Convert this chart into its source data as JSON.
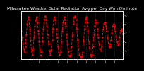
{
  "title": "Milwaukee Weather Solar Radiation Avg per Day W/m2/minute",
  "title_fontsize": 4.2,
  "line_color": "red",
  "line_style": "--",
  "line_width": 0.7,
  "marker": ".",
  "marker_size": 1.5,
  "bg_color": "#000000",
  "plot_bg_color": "#000000",
  "grid_color": "#888888",
  "text_color": "#ffffff",
  "x_values": [
    1,
    2,
    3,
    4,
    5,
    6,
    7,
    8,
    9,
    10,
    11,
    12,
    13,
    14,
    15,
    16,
    17,
    18,
    19,
    20,
    21,
    22,
    23,
    24,
    25,
    26,
    27,
    28,
    29,
    30,
    31,
    32,
    33,
    34,
    35,
    36,
    37,
    38,
    39,
    40,
    41,
    42,
    43,
    44,
    45,
    46,
    47,
    48,
    49,
    50,
    51,
    52,
    53,
    54,
    55,
    56,
    57,
    58,
    59,
    60,
    61,
    62,
    63,
    64,
    65,
    66,
    67,
    68,
    69,
    70,
    71,
    72,
    73,
    74,
    75,
    76,
    77,
    78,
    79,
    80,
    81,
    82,
    83,
    84,
    85,
    86,
    87,
    88,
    89,
    90,
    91,
    92,
    93,
    94,
    95,
    96,
    97,
    98,
    99,
    100,
    101,
    102,
    103,
    104,
    105,
    106,
    107,
    108,
    109,
    110,
    111,
    112,
    113,
    114,
    115,
    116,
    117,
    118,
    119,
    120
  ],
  "y_values": [
    3.2,
    2.5,
    1.8,
    1.2,
    0.8,
    1.5,
    2.8,
    4.0,
    4.8,
    4.5,
    3.5,
    2.2,
    1.0,
    0.5,
    1.2,
    2.5,
    3.8,
    4.5,
    4.8,
    4.2,
    3.2,
    2.0,
    1.0,
    0.4,
    0.8,
    2.0,
    3.5,
    4.5,
    4.9,
    4.5,
    3.8,
    2.8,
    1.8,
    1.0,
    0.5,
    1.0,
    2.2,
    3.5,
    4.5,
    4.8,
    4.5,
    3.5,
    2.5,
    1.5,
    0.8,
    0.5,
    0.8,
    2.0,
    3.2,
    4.2,
    4.8,
    4.5,
    3.8,
    2.8,
    1.8,
    0.9,
    0.4,
    0.3,
    0.5,
    1.5,
    2.8,
    4.0,
    4.8,
    4.9,
    4.5,
    3.5,
    2.2,
    1.2,
    0.5,
    0.3,
    0.2,
    0.3,
    0.8,
    2.0,
    3.5,
    4.5,
    4.8,
    4.2,
    3.2,
    2.0,
    1.2,
    0.5,
    0.3,
    0.5,
    1.5,
    2.8,
    3.8,
    4.5,
    4.2,
    3.5,
    2.5,
    1.8,
    1.2,
    1.0,
    1.5,
    2.5,
    3.5,
    4.0,
    4.2,
    3.8,
    3.2,
    2.5,
    1.8,
    1.4,
    1.5,
    2.2,
    3.0,
    3.8,
    4.0,
    3.8,
    3.2,
    2.6,
    2.0,
    1.6,
    1.8,
    2.5,
    3.2,
    3.5,
    3.2,
    2.8
  ],
  "ylim": [
    0,
    5.5
  ],
  "xlim": [
    1,
    120
  ],
  "yticks": [
    1,
    2,
    3,
    4,
    5
  ],
  "ytick_labels": [
    "1",
    "2",
    "3",
    "4",
    "5"
  ],
  "xtick_positions": [
    11,
    22,
    33,
    44,
    55,
    66,
    77,
    88,
    99,
    110
  ],
  "xtick_labels": [
    "l",
    "l",
    "l",
    "l",
    "l",
    "l",
    "l",
    "l",
    "l",
    "l"
  ],
  "tick_label_size": 3.0,
  "xlabel_fontsize": 2.8,
  "grid_alpha": 0.6,
  "grid_lw": 0.4,
  "spine_lw": 0.5
}
